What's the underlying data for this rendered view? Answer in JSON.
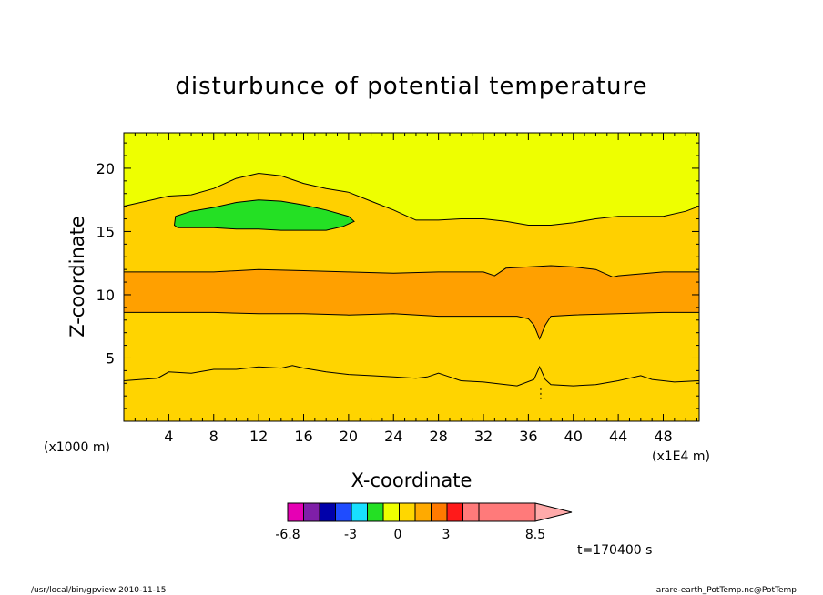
{
  "chart_data": {
    "type": "contour",
    "title": "disturbunce of potential temperature",
    "xlabel": "X-coordinate",
    "ylabel": "Z-coordinate",
    "x_unit": "(x1E4 m)",
    "y_unit": "(x1000 m)",
    "xlim": [
      0,
      51.2
    ],
    "ylim": [
      0,
      22.8
    ],
    "xticks": [
      4,
      8,
      12,
      16,
      20,
      24,
      28,
      32,
      36,
      40,
      44,
      48
    ],
    "yticks": [
      5,
      10,
      15,
      20
    ],
    "time_label": "t=170400 s",
    "colorbar": {
      "tick_labels": [
        "-6.8",
        "-3",
        "0",
        "3",
        "8.5"
      ],
      "tick_values": [
        -6.8,
        -3,
        0,
        3,
        8.5
      ],
      "colors": [
        "#e600b4",
        "#7f1fa8",
        "#0000aa",
        "#1f4cff",
        "#18e0ff",
        "#24e024",
        "#eeff00",
        "#ffd700",
        "#ffaa00",
        "#ff7a00",
        "#ff1a1a",
        "#ff7a7a",
        "#ffaaaa"
      ],
      "extend": "max"
    },
    "bands": [
      {
        "fill": "#ffd400",
        "boundary": [
          [
            0,
            3.2
          ],
          [
            3,
            3.4
          ],
          [
            4,
            3.9
          ],
          [
            6,
            3.8
          ],
          [
            8,
            4.1
          ],
          [
            10,
            4.1
          ],
          [
            12,
            4.3
          ],
          [
            14,
            4.2
          ],
          [
            15,
            4.4
          ],
          [
            16,
            4.2
          ],
          [
            18,
            3.9
          ],
          [
            20,
            3.7
          ],
          [
            22,
            3.6
          ],
          [
            24,
            3.5
          ],
          [
            26,
            3.4
          ],
          [
            27,
            3.5
          ],
          [
            28,
            3.8
          ],
          [
            29,
            3.5
          ],
          [
            30,
            3.2
          ],
          [
            32,
            3.1
          ],
          [
            34,
            2.9
          ],
          [
            35,
            2.8
          ],
          [
            36.5,
            3.3
          ],
          [
            37,
            4.3
          ],
          [
            37.5,
            3.3
          ],
          [
            38,
            2.9
          ],
          [
            40,
            2.8
          ],
          [
            42,
            2.9
          ],
          [
            44,
            3.2
          ],
          [
            46,
            3.6
          ],
          [
            47,
            3.3
          ],
          [
            49,
            3.1
          ],
          [
            51.2,
            3.2
          ]
        ]
      },
      {
        "fill": "#ffa000",
        "boundary": [
          [
            0,
            8.6
          ],
          [
            4,
            8.6
          ],
          [
            8,
            8.6
          ],
          [
            12,
            8.5
          ],
          [
            16,
            8.5
          ],
          [
            20,
            8.4
          ],
          [
            24,
            8.5
          ],
          [
            28,
            8.3
          ],
          [
            32,
            8.3
          ],
          [
            35,
            8.3
          ],
          [
            36,
            8.1
          ],
          [
            36.5,
            7.6
          ],
          [
            37,
            6.5
          ],
          [
            37.5,
            7.6
          ],
          [
            38,
            8.3
          ],
          [
            40,
            8.4
          ],
          [
            44,
            8.5
          ],
          [
            48,
            8.6
          ],
          [
            51.2,
            8.6
          ]
        ]
      },
      {
        "fill": "#ffd000",
        "boundary": [
          [
            0,
            11.8
          ],
          [
            4,
            11.8
          ],
          [
            8,
            11.8
          ],
          [
            12,
            12.0
          ],
          [
            16,
            11.9
          ],
          [
            20,
            11.8
          ],
          [
            24,
            11.7
          ],
          [
            28,
            11.8
          ],
          [
            32,
            11.8
          ],
          [
            33,
            11.5
          ],
          [
            33.5,
            11.8
          ],
          [
            34,
            12.1
          ],
          [
            36,
            12.2
          ],
          [
            38,
            12.3
          ],
          [
            40,
            12.2
          ],
          [
            42,
            12.0
          ],
          [
            43,
            11.6
          ],
          [
            43.5,
            11.4
          ],
          [
            44,
            11.5
          ],
          [
            48,
            11.8
          ],
          [
            51.2,
            11.8
          ]
        ]
      },
      {
        "fill": "#eeff00",
        "boundary": [
          [
            0,
            17.0
          ],
          [
            2,
            17.4
          ],
          [
            4,
            17.8
          ],
          [
            6,
            17.9
          ],
          [
            8,
            18.4
          ],
          [
            10,
            19.2
          ],
          [
            12,
            19.6
          ],
          [
            14,
            19.4
          ],
          [
            16,
            18.8
          ],
          [
            18,
            18.4
          ],
          [
            20,
            18.1
          ],
          [
            22,
            17.4
          ],
          [
            24,
            16.7
          ],
          [
            25,
            16.3
          ],
          [
            26,
            15.9
          ],
          [
            28,
            15.9
          ],
          [
            30,
            16.0
          ],
          [
            32,
            16.0
          ],
          [
            34,
            15.8
          ],
          [
            36,
            15.5
          ],
          [
            38,
            15.5
          ],
          [
            40,
            15.7
          ],
          [
            42,
            16.0
          ],
          [
            44,
            16.2
          ],
          [
            46,
            16.2
          ],
          [
            48,
            16.2
          ],
          [
            50,
            16.6
          ],
          [
            51.2,
            17.0
          ]
        ]
      },
      {
        "fill": "#24e024",
        "boundary": [
          [
            0,
            22.8
          ],
          [
            51.2,
            22.8
          ]
        ]
      }
    ],
    "islands": [
      {
        "fill": "#24e024",
        "outline": [
          [
            4.5,
            15.5
          ],
          [
            4.6,
            16.2
          ],
          [
            6,
            16.6
          ],
          [
            8,
            16.9
          ],
          [
            10,
            17.3
          ],
          [
            12,
            17.5
          ],
          [
            14,
            17.4
          ],
          [
            16,
            17.1
          ],
          [
            18,
            16.7
          ],
          [
            20,
            16.2
          ],
          [
            20.5,
            15.8
          ],
          [
            19.5,
            15.4
          ],
          [
            18,
            15.1
          ],
          [
            16,
            15.1
          ],
          [
            14,
            15.1
          ],
          [
            12,
            15.2
          ],
          [
            10,
            15.2
          ],
          [
            8,
            15.3
          ],
          [
            6,
            15.3
          ],
          [
            4.8,
            15.3
          ]
        ]
      }
    ]
  },
  "footer": {
    "left": "/usr/local/bin/gpview   2010-11-15",
    "right": "arare-earth_PotTemp.nc@PotTemp"
  }
}
